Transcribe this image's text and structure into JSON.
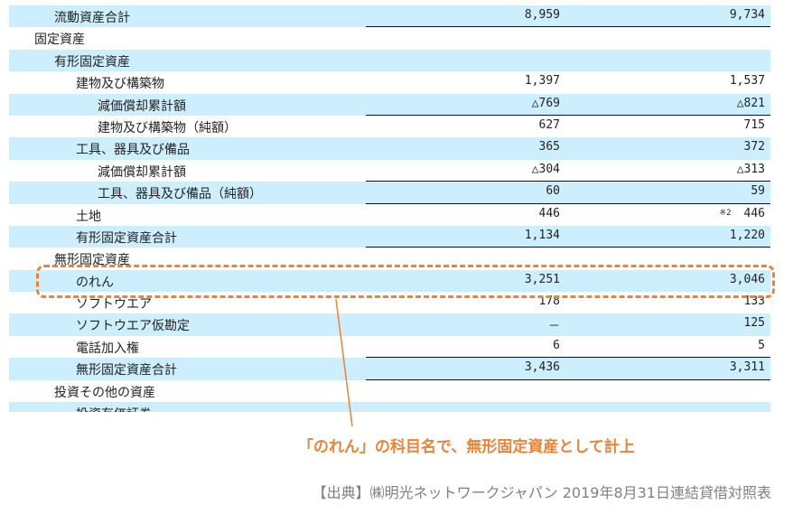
{
  "rows": [
    {
      "label": "流動資産合計",
      "v1": "8,959",
      "v2": "9,734"
    },
    {
      "label": "固定資産",
      "v1": "",
      "v2": ""
    },
    {
      "label": "有形固定資産",
      "v1": "",
      "v2": ""
    },
    {
      "label": "建物及び構築物",
      "v1": "1,397",
      "v2": "1,537"
    },
    {
      "label": "減価償却累計額",
      "v1": "△769",
      "v2": "△821"
    },
    {
      "label": "建物及び構築物（純額）",
      "v1": "627",
      "v2": "715"
    },
    {
      "label": "工具、器具及び備品",
      "v1": "365",
      "v2": "372"
    },
    {
      "label": "減価償却累計額",
      "v1": "△304",
      "v2": "△313"
    },
    {
      "label": "工具、器具及び備品（純額）",
      "v1": "60",
      "v2": "59"
    },
    {
      "label": "土地",
      "v1": "446",
      "v2": "446",
      "v2_note": "※2"
    },
    {
      "label": "有形固定資産合計",
      "v1": "1,134",
      "v2": "1,220"
    },
    {
      "label": "無形固定資産",
      "v1": "",
      "v2": ""
    },
    {
      "label": "のれん",
      "v1": "3,251",
      "v2": "3,046"
    },
    {
      "label": "ソフトウエア",
      "v1": "178",
      "v2": "133"
    },
    {
      "label": "ソフトウエア仮勘定",
      "v1": "－",
      "v2": "125"
    },
    {
      "label": "電話加入権",
      "v1": "6",
      "v2": "5"
    },
    {
      "label": "無形固定資産合計",
      "v1": "3,436",
      "v2": "3,311"
    },
    {
      "label": "投資その他の資産",
      "v1": "",
      "v2": ""
    },
    {
      "label": "投資有価証券",
      "v1": "",
      "v2": ""
    }
  ],
  "annotation": "「のれん」の科目名で、無形固定資産として計上",
  "source": "【出典】㈱明光ネットワークジャパン 2019年8月31日連結貸借対照表",
  "colors": {
    "row_highlight": "#cdeefc",
    "accent": "#e8843a",
    "source_text": "#808080"
  }
}
